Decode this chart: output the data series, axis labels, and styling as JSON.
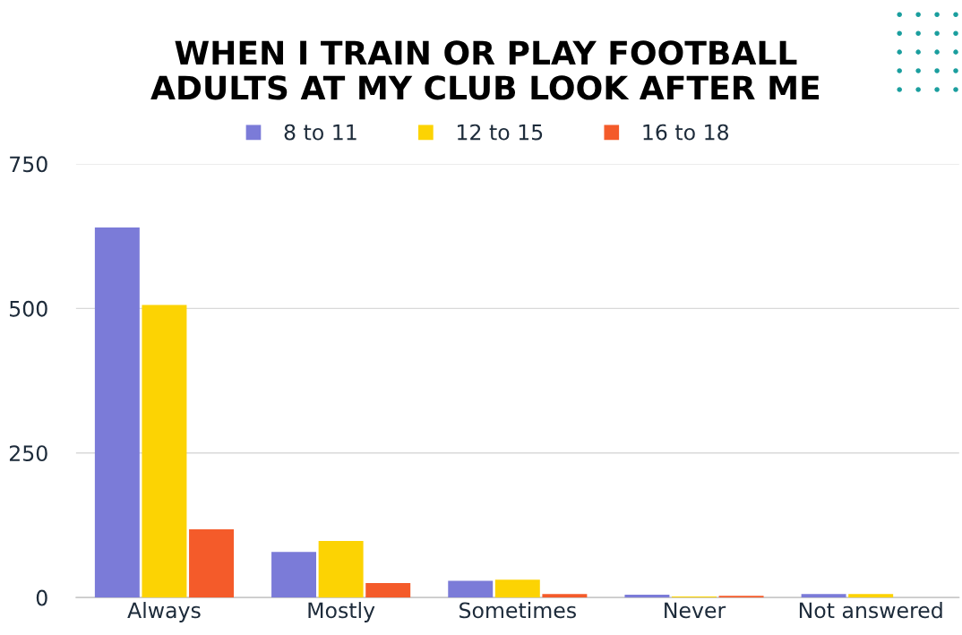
{
  "chart_data": {
    "type": "bar",
    "title": "WHEN I TRAIN OR PLAY FOOTBALL\nADULTS AT MY CLUB LOOK AFTER ME",
    "categories": [
      "Always",
      "Mostly",
      "Sometimes",
      "Never",
      "Not answered"
    ],
    "series": [
      {
        "name": "8 to 11",
        "color": "#7b7bd8",
        "values": [
          640,
          79,
          29,
          5,
          6
        ]
      },
      {
        "name": "12 to 15",
        "color": "#fcd303",
        "values": [
          506,
          98,
          31,
          2,
          6
        ]
      },
      {
        "name": "16 to 18",
        "color": "#f45b2a",
        "values": [
          118,
          25,
          6,
          3,
          0
        ]
      }
    ],
    "ylim": [
      0,
      750
    ],
    "yticks": [
      0,
      250,
      500,
      750
    ],
    "grid": "y",
    "legend": "top"
  }
}
